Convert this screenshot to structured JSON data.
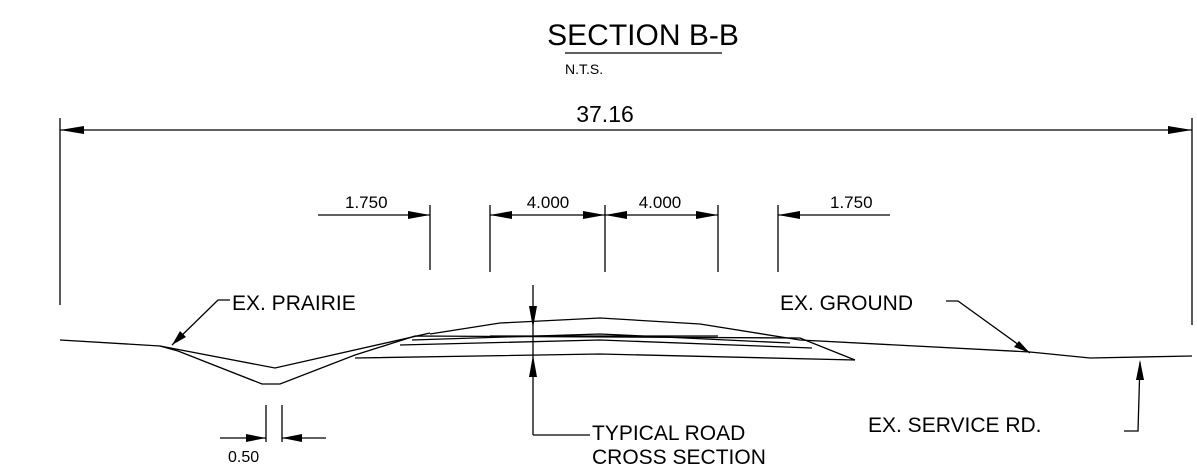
{
  "title": "SECTION B-B",
  "subtitle": "N.T.S.",
  "dimensions": {
    "overall": "37.16",
    "left_shoulder": "1.750",
    "left_lane": "4.000",
    "right_lane": "4.000",
    "right_shoulder": "1.750",
    "ditch_bottom": "0.50"
  },
  "labels": {
    "prairie": "EX. PRAIRIE",
    "ground": "EX. GROUND",
    "road_line1": "TYPICAL ROAD",
    "road_line2": "CROSS SECTION",
    "service_rd": "EX. SERVICE RD."
  }
}
